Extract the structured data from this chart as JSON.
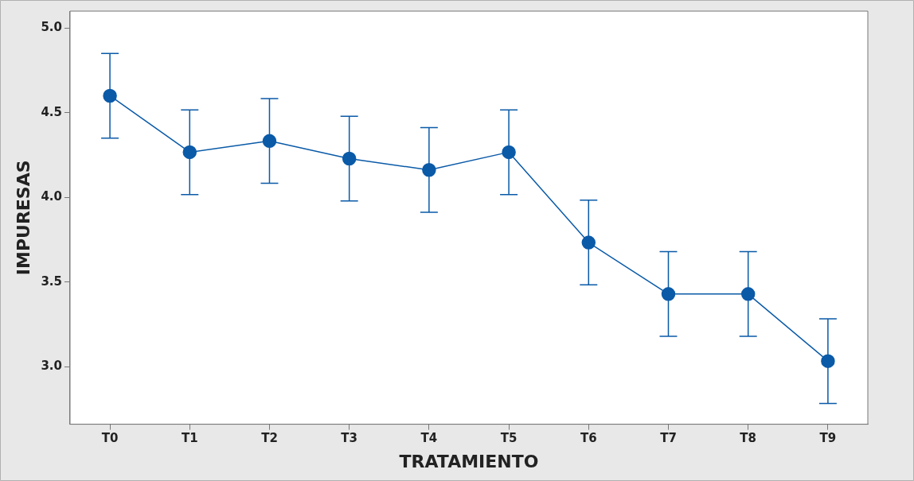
{
  "chart_data": {
    "type": "line",
    "xlabel": "TRATAMIENTO",
    "ylabel": "IMPURESAS",
    "categories": [
      "T0",
      "T1",
      "T2",
      "T3",
      "T4",
      "T5",
      "T6",
      "T7",
      "T8",
      "T9"
    ],
    "series": [
      {
        "color": "#0a5aa8",
        "values": [
          4.6,
          4.267,
          4.333,
          4.229,
          4.162,
          4.267,
          3.733,
          3.429,
          3.429,
          3.033
        ],
        "errors": [
          0.25,
          0.25,
          0.25,
          0.25,
          0.25,
          0.25,
          0.25,
          0.25,
          0.25,
          0.25
        ]
      }
    ],
    "ylim": [
      2.66,
      5.1
    ],
    "yticks": [
      {
        "value": 3,
        "label": "3.0"
      },
      {
        "value": 3.5,
        "label": "3.5"
      },
      {
        "value": 4,
        "label": "4.0"
      },
      {
        "value": 4.5,
        "label": "4.5"
      },
      {
        "value": 5,
        "label": "5.0"
      }
    ],
    "marker": "circle",
    "line_style": "solid"
  }
}
